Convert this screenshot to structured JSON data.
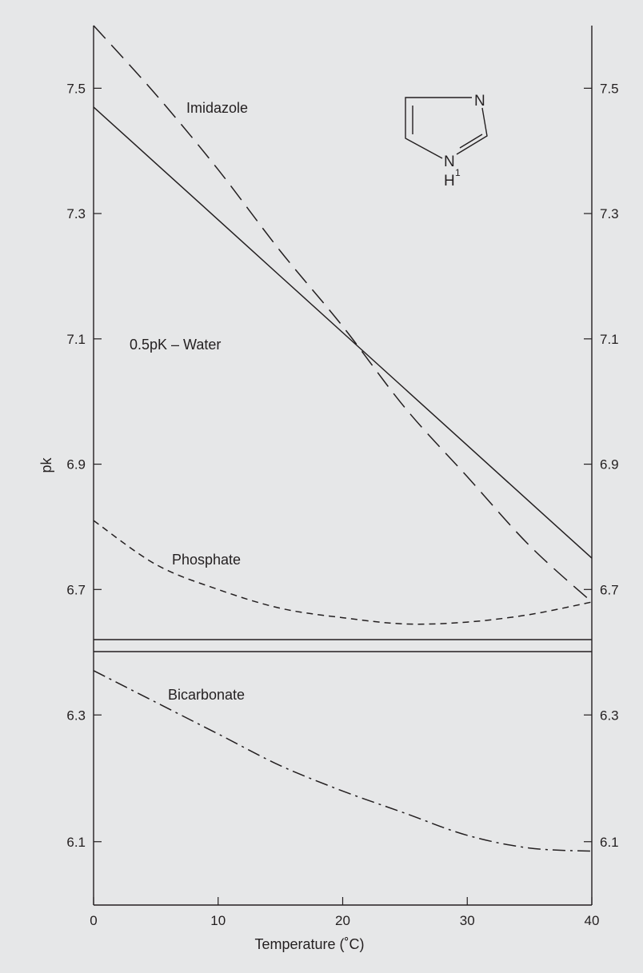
{
  "chart_data": {
    "type": "line",
    "title": "",
    "xlabel": "Temperature (˚C)",
    "ylabel": "pk",
    "xlim": [
      0,
      40
    ],
    "ylim_upper": [
      6.62,
      7.6
    ],
    "ylim_lower": [
      6.0,
      6.4
    ],
    "x_ticks": [
      0,
      10,
      20,
      30,
      40
    ],
    "x_tick_labels": [
      "0",
      "10",
      "20",
      "30",
      "40"
    ],
    "y_ticks_upper": [
      7.5,
      7.3,
      7.1,
      6.9,
      6.7
    ],
    "y_tick_labels_upper": [
      "7.5",
      "7.3",
      "7.1",
      "6.9",
      "6.7"
    ],
    "y_ticks_lower": [
      6.3,
      6.1
    ],
    "y_tick_labels_lower": [
      "6.3",
      "6.1"
    ],
    "grid": false,
    "legend": "none",
    "series": [
      {
        "name": "Imidazole",
        "style": "dashed",
        "panel": "upper",
        "x": [
          0,
          5,
          10,
          15,
          20,
          25,
          30,
          35,
          40
        ],
        "y": [
          7.6,
          7.49,
          7.37,
          7.24,
          7.12,
          6.99,
          6.88,
          6.77,
          6.68
        ]
      },
      {
        "name": "0.5pK – Water",
        "style": "solid",
        "panel": "upper",
        "x": [
          0,
          5,
          10,
          15,
          20,
          25,
          30,
          35,
          40
        ],
        "y": [
          7.47,
          7.38,
          7.29,
          7.2,
          7.11,
          7.02,
          6.93,
          6.84,
          6.75
        ]
      },
      {
        "name": "Phosphate",
        "style": "short-dashed",
        "panel": "upper",
        "x": [
          0,
          5,
          10,
          15,
          20,
          25,
          30,
          35,
          40
        ],
        "y": [
          6.81,
          6.74,
          6.7,
          6.67,
          6.655,
          6.645,
          6.648,
          6.66,
          6.68
        ]
      },
      {
        "name": "Bicarbonate",
        "style": "dash-dot",
        "panel": "lower",
        "x": [
          0,
          5,
          10,
          15,
          20,
          25,
          30,
          35,
          40
        ],
        "y": [
          6.37,
          6.32,
          6.27,
          6.22,
          6.18,
          6.145,
          6.11,
          6.09,
          6.085
        ]
      }
    ],
    "annotations": {
      "imidazole": "Imidazole",
      "water": "0.5pK – Water",
      "phosphate": "Phosphate",
      "bicarbonate": "Bicarbonate"
    },
    "structure": {
      "atom_n_top": "N",
      "atom_n_bottom": "N",
      "atom_h": "H",
      "atom_h_superscript": "1"
    }
  },
  "colors": {
    "background": "#e6e7e8",
    "ink": "#231f20"
  }
}
